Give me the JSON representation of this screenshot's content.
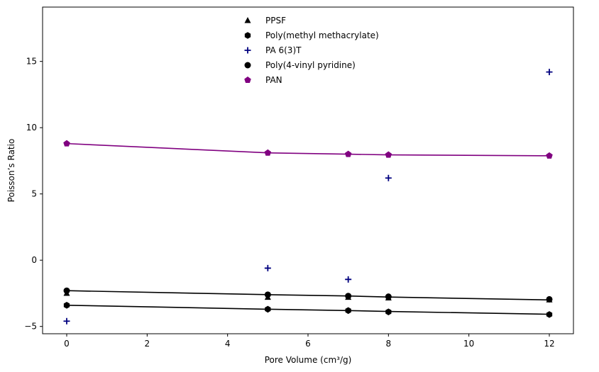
{
  "chart_data": {
    "type": "scatter",
    "title": "",
    "xlabel": "Pore Volume (cm³/g)",
    "ylabel": "Poisson’s Ratio",
    "xlim": [
      -0.6,
      12.6
    ],
    "ylim": [
      -5.55,
      19.1
    ],
    "xticks": [
      0,
      2,
      4,
      6,
      8,
      10,
      12
    ],
    "yticks": [
      -5,
      0,
      5,
      10,
      15
    ],
    "grid": false,
    "legend_position": "top-center",
    "series": [
      {
        "name": "PPSF",
        "marker": "triangle",
        "color": "#000000",
        "x": [
          0,
          5,
          7,
          8,
          12
        ],
        "y": [
          -2.5,
          -2.8,
          -2.8,
          -2.85,
          -3.0
        ]
      },
      {
        "name": "Poly(methyl methacrylate)",
        "marker": "hexagon",
        "color": "#000000",
        "x": [
          0,
          5,
          7,
          8,
          12
        ],
        "y": [
          -3.4,
          -3.7,
          -3.8,
          -3.9,
          -4.1
        ]
      },
      {
        "name": "PA 6(3)T",
        "marker": "plus",
        "color": "#00007f",
        "x": [
          0,
          5,
          7,
          8,
          12
        ],
        "y": [
          -4.6,
          -0.6,
          -1.45,
          6.2,
          14.2
        ]
      },
      {
        "name": "Poly(4-vinyl pyridine)",
        "marker": "circle",
        "color": "#000000",
        "x": [
          0,
          5,
          7,
          8,
          12
        ],
        "y": [
          -2.3,
          -2.6,
          -2.7,
          -2.75,
          -2.95
        ]
      },
      {
        "name": "PAN",
        "marker": "pentagon",
        "color": "#800080",
        "x": [
          0,
          5,
          7,
          8,
          12
        ],
        "y": [
          8.8,
          8.1,
          8.0,
          7.95,
          7.88
        ]
      }
    ],
    "lines": [
      {
        "color": "#000000",
        "x": [
          0,
          5,
          7,
          8,
          12
        ],
        "y": [
          -2.3,
          -2.6,
          -2.7,
          -2.78,
          -3.0
        ]
      },
      {
        "color": "#000000",
        "x": [
          0,
          5,
          7,
          8,
          12
        ],
        "y": [
          -3.4,
          -3.7,
          -3.8,
          -3.87,
          -4.08
        ]
      },
      {
        "color": "#800080",
        "x": [
          0,
          5,
          7,
          8,
          12
        ],
        "y": [
          8.8,
          8.1,
          8.0,
          7.95,
          7.88
        ]
      }
    ]
  }
}
